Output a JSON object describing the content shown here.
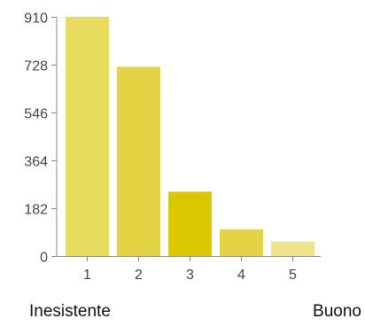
{
  "chart_data": {
    "type": "bar",
    "categories": [
      "1",
      "2",
      "3",
      "4",
      "5"
    ],
    "values": [
      910,
      720,
      245,
      102,
      55
    ],
    "yticks": [
      0,
      182,
      364,
      546,
      728,
      910
    ],
    "ylim": [
      0,
      910
    ],
    "bar_colors": [
      "#e8dc5e",
      "#e4d443",
      "#dcc800",
      "#e4d443",
      "#ede48a"
    ],
    "grid": false
  },
  "scale": {
    "min_label": "Inesistente",
    "max_label": "Buono"
  }
}
